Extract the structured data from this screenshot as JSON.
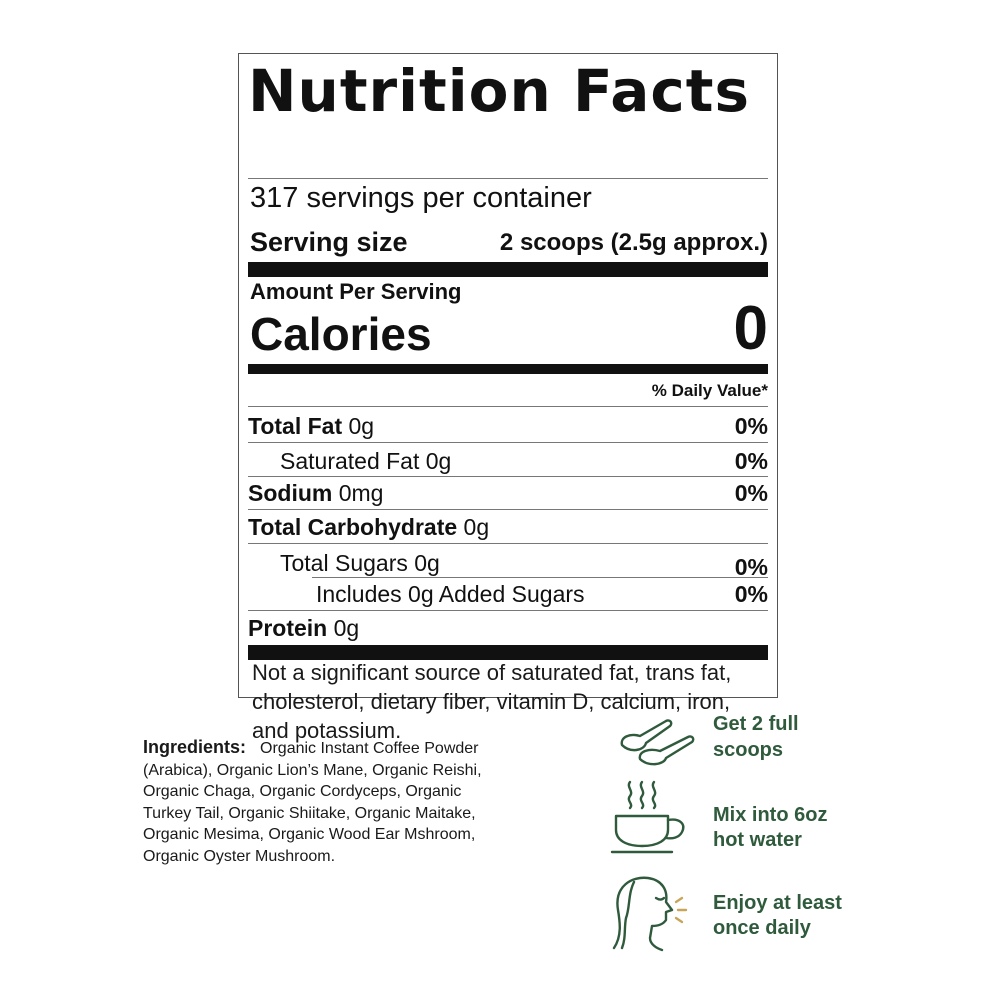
{
  "nutrition": {
    "title": "Nutrition Facts",
    "servings_per_container": "317 servings per container",
    "serving_size_label": "Serving size",
    "serving_size_value": "2 scoops (2.5g approx.)",
    "amount_per_serving": "Amount Per Serving",
    "calories_label": "Calories",
    "calories_value": "0",
    "daily_value_header": "% Daily Value*",
    "rows": [
      {
        "bold": "Total Fat",
        "plain": " 0g",
        "pct": "0%"
      },
      {
        "bold": "",
        "plain": "Saturated Fat 0g",
        "pct": "0%"
      },
      {
        "bold": "Sodium",
        "plain": " 0mg",
        "pct": "0%"
      },
      {
        "bold": "Total Carbohydrate",
        "plain": " 0g",
        "pct": ""
      },
      {
        "bold": "",
        "plain": "Total Sugars 0g",
        "pct": "0%"
      },
      {
        "bold": "",
        "plain": "Includes 0g Added Sugars",
        "pct": "0%"
      },
      {
        "bold": "Protein",
        "plain": " 0g",
        "pct": ""
      }
    ],
    "footnote": "Not a significant source of saturated fat, trans fat, cholesterol, dietary fiber, vitamin D, calcium, iron, and potassium."
  },
  "ingredients": {
    "label": "Ingredients:",
    "text": "Organic Instant Coffee Powder (Arabica), Organic Lion’s Mane, Organic Reishi, Organic Chaga, Organic Cordyceps, Organic Turkey Tail, Organic Shiitake, Organic Maitake, Organic Mesima, Organic Wood Ear Mshroom, Organic Oyster Mushroom."
  },
  "steps": [
    {
      "icon": "scoop-icon",
      "line1": "Get 2 full",
      "line2": "scoops"
    },
    {
      "icon": "coffee-cup-icon",
      "line1": "Mix into 6oz",
      "line2": "hot water"
    },
    {
      "icon": "woman-face-icon",
      "line1": "Enjoy at least",
      "line2": "once daily"
    }
  ],
  "colors": {
    "step_text": "#2f5a3c",
    "icon_stroke": "#2f5a3c",
    "icon_accent": "#c9a55a"
  }
}
